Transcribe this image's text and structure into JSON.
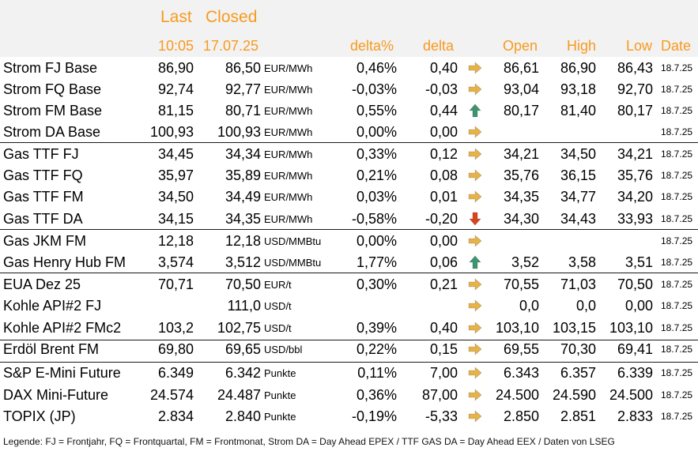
{
  "header": {
    "last": "Last",
    "closed": "Closed",
    "time": "10:05",
    "closed_date": "17.07.25",
    "delta_pct": "delta%",
    "delta": "delta",
    "open": "Open",
    "high": "High",
    "low": "Low",
    "date": "Date"
  },
  "colors": {
    "accent": "#f79a1e",
    "header_bg": "#f2f2f2",
    "arrow_right": "#e6b24a",
    "arrow_up": "#3f9470",
    "arrow_down": "#d9441c"
  },
  "rows": [
    {
      "name": "Strom FJ Base",
      "last": "86,90",
      "closed": "86,50",
      "unit": "EUR/MWh",
      "delta_pct": "0,46%",
      "delta": "0,40",
      "trend": "flat",
      "open": "86,61",
      "high": "86,90",
      "low": "86,43",
      "date": "18.7.25"
    },
    {
      "name": "Strom FQ Base",
      "last": "92,74",
      "closed": "92,77",
      "unit": "EUR/MWh",
      "delta_pct": "-0,03%",
      "delta": "-0,03",
      "trend": "flat",
      "open": "93,04",
      "high": "93,18",
      "low": "92,70",
      "date": "18.7.25"
    },
    {
      "name": "Strom FM Base",
      "last": "81,15",
      "closed": "80,71",
      "unit": "EUR/MWh",
      "delta_pct": "0,55%",
      "delta": "0,44",
      "trend": "up",
      "open": "80,17",
      "high": "81,40",
      "low": "80,17",
      "date": "18.7.25"
    },
    {
      "name": "Strom DA Base",
      "last": "100,93",
      "closed": "100,93",
      "unit": "EUR/MWh",
      "delta_pct": "0,00%",
      "delta": "0,00",
      "trend": "flat",
      "open": "",
      "high": "",
      "low": "",
      "date": "18.7.25"
    },
    {
      "name": "Gas TTF FJ",
      "last": "34,45",
      "closed": "34,34",
      "unit": "EUR/MWh",
      "delta_pct": "0,33%",
      "delta": "0,12",
      "trend": "flat",
      "open": "34,21",
      "high": "34,50",
      "low": "34,21",
      "date": "18.7.25"
    },
    {
      "name": "Gas TTF FQ",
      "last": "35,97",
      "closed": "35,89",
      "unit": "EUR/MWh",
      "delta_pct": "0,21%",
      "delta": "0,08",
      "trend": "flat",
      "open": "35,76",
      "high": "36,15",
      "low": "35,76",
      "date": "18.7.25"
    },
    {
      "name": "Gas TTF FM",
      "last": "34,50",
      "closed": "34,49",
      "unit": "EUR/MWh",
      "delta_pct": "0,03%",
      "delta": "0,01",
      "trend": "flat",
      "open": "34,35",
      "high": "34,77",
      "low": "34,20",
      "date": "18.7.25"
    },
    {
      "name": "Gas TTF DA",
      "last": "34,15",
      "closed": "34,35",
      "unit": "EUR/MWh",
      "delta_pct": "-0,58%",
      "delta": "-0,20",
      "trend": "down",
      "open": "34,30",
      "high": "34,43",
      "low": "33,93",
      "date": "18.7.25"
    },
    {
      "name": "Gas JKM FM",
      "last": "12,18",
      "closed": "12,18",
      "unit": "USD/MMBtu",
      "delta_pct": "0,00%",
      "delta": "0,00",
      "trend": "flat",
      "open": "",
      "high": "",
      "low": "",
      "date": "18.7.25"
    },
    {
      "name": "Gas Henry Hub FM",
      "last": "3,574",
      "closed": "3,512",
      "unit": "USD/MMBtu",
      "delta_pct": "1,77%",
      "delta": "0,06",
      "trend": "up",
      "open": "3,52",
      "high": "3,58",
      "low": "3,51",
      "date": "18.7.25"
    },
    {
      "name": "EUA Dez 25",
      "last": "70,71",
      "closed": "70,50",
      "unit": "EUR/t",
      "delta_pct": "0,30%",
      "delta": "0,21",
      "trend": "flat",
      "open": "70,55",
      "high": "71,03",
      "low": "70,50",
      "date": "18.7.25"
    },
    {
      "name": "Kohle API#2 FJ",
      "last": "",
      "closed": "111,0",
      "unit": "USD/t",
      "delta_pct": "",
      "delta": "",
      "trend": "flat",
      "open": "0,0",
      "high": "0,0",
      "low": "0,00",
      "date": "18.7.25"
    },
    {
      "name": "Kohle API#2 FMc2",
      "last": "103,2",
      "closed": "102,75",
      "unit": "USD/t",
      "delta_pct": "0,39%",
      "delta": "0,40",
      "trend": "flat",
      "open": "103,10",
      "high": "103,15",
      "low": "103,10",
      "date": "18.7.25"
    },
    {
      "name": "Erdöl Brent FM",
      "last": "69,80",
      "closed": "69,65",
      "unit": "USD/bbl",
      "delta_pct": "0,22%",
      "delta": "0,15",
      "trend": "flat",
      "open": "69,55",
      "high": "70,30",
      "low": "69,41",
      "date": "18.7.25"
    },
    {
      "name": "S&P E-Mini Future",
      "last": "6.349",
      "closed": "6.342",
      "unit": "Punkte",
      "delta_pct": "0,11%",
      "delta": "7,00",
      "trend": "flat",
      "open": "6.343",
      "high": "6.357",
      "low": "6.339",
      "date": "18.7.25"
    },
    {
      "name": "DAX Mini-Future",
      "last": "24.574",
      "closed": "24.487",
      "unit": "Punkte",
      "delta_pct": "0,36%",
      "delta": "87,00",
      "trend": "flat",
      "open": "24.500",
      "high": "24.590",
      "low": "24.500",
      "date": "18.7.25"
    },
    {
      "name": "TOPIX (JP)",
      "last": "2.834",
      "closed": "2.840",
      "unit": "Punkte",
      "delta_pct": "-0,19%",
      "delta": "-5,33",
      "trend": "flat",
      "open": "2.850",
      "high": "2.851",
      "low": "2.833",
      "date": "18.7.25"
    }
  ],
  "legend": "Legende: FJ = Frontjahr, FQ = Frontquartal, FM = Frontmonat, Strom DA = Day Ahead EPEX / TTF GAS DA = Day Ahead EEX / Daten von LSEG"
}
